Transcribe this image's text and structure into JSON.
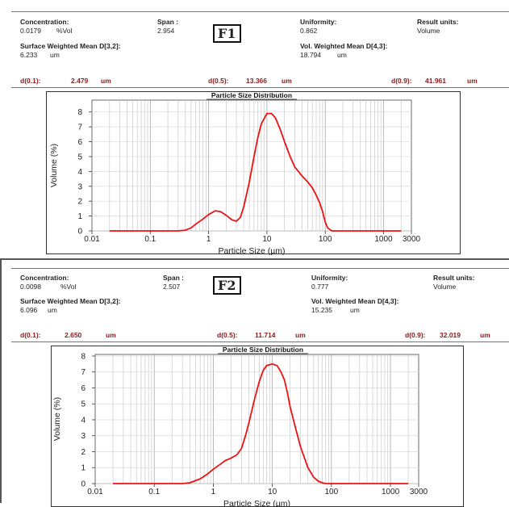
{
  "panels": [
    {
      "tag": "F1",
      "concentration_label": "Concentration:",
      "concentration_value": "0.0179",
      "concentration_unit": "%Vol",
      "span_label": "Span :",
      "span_value": "2.954",
      "uniformity_label": "Uniformity:",
      "uniformity_value": "0.862",
      "result_units_label": "Result units:",
      "result_units_value": "Volume",
      "swm_label": "Surface Weighted Mean D[3,2]:",
      "swm_value": "6.233",
      "swm_unit": "um",
      "vwm_label": "Vol. Weighted Mean D[4,3]:",
      "vwm_value": "18.794",
      "vwm_unit": "um",
      "d01_label": "d(0.1):",
      "d01_value": "2.479",
      "d05_label": "d(0.5):",
      "d05_value": "13.366",
      "d09_label": "d(0.9):",
      "d09_value": "41.961",
      "d_unit": "um"
    },
    {
      "tag": "F2",
      "concentration_label": "Concentration:",
      "concentration_value": "0.0098",
      "concentration_unit": "%Vol",
      "span_label": "Span :",
      "span_value": "2.507",
      "uniformity_label": "Uniformity:",
      "uniformity_value": "0.777",
      "result_units_label": "Result units:",
      "result_units_value": "Volume",
      "swm_label": "Surface Weighted Mean D[3,2]:",
      "swm_value": "6.096",
      "swm_unit": "um",
      "vwm_label": "Vol. Weighted Mean D[4,3]:",
      "vwm_value": "15.235",
      "vwm_unit": "um",
      "d01_label": "d(0.1):",
      "d01_value": "2.650",
      "d05_label": "d(0.5):",
      "d05_value": "11.714",
      "d09_label": "d(0.9):",
      "d09_value": "32.019",
      "d_unit": "um"
    }
  ],
  "chart_data": [
    {
      "type": "line",
      "title": "Particle Size Distribution",
      "xlabel": "Particle Size (µm)",
      "ylabel": "Volume (%)",
      "xscale": "log",
      "xlim": [
        0.01,
        3000
      ],
      "ylim": [
        0,
        8.8
      ],
      "xticks": [
        {
          "v": 0.01,
          "t": "0.01"
        },
        {
          "v": 0.1,
          "t": "0.1"
        },
        {
          "v": 1,
          "t": "1"
        },
        {
          "v": 10,
          "t": "10"
        },
        {
          "v": 100,
          "t": "100"
        },
        {
          "v": 1000,
          "t": "1000"
        },
        {
          "v": 3000,
          "t": "3000"
        }
      ],
      "yticks": [
        0,
        1,
        2,
        3,
        4,
        5,
        6,
        7,
        8
      ],
      "grid": true,
      "line_color": "#ee1111",
      "x": [
        0.02,
        0.3,
        0.4,
        0.5,
        0.6,
        0.8,
        1.0,
        1.3,
        1.6,
        2.0,
        2.5,
        3.0,
        3.5,
        4.0,
        5.0,
        6.0,
        7.0,
        8.0,
        10,
        12,
        14,
        17,
        20,
        25,
        30,
        40,
        50,
        60,
        70,
        80,
        90,
        100,
        110,
        130,
        2000
      ],
      "y": [
        0,
        0,
        0.05,
        0.2,
        0.45,
        0.8,
        1.1,
        1.35,
        1.3,
        1.05,
        0.75,
        0.65,
        0.9,
        1.6,
        3.3,
        5.0,
        6.3,
        7.2,
        7.9,
        7.9,
        7.6,
        6.8,
        6.0,
        5.0,
        4.3,
        3.7,
        3.3,
        2.9,
        2.4,
        1.9,
        1.3,
        0.6,
        0.2,
        0,
        0
      ]
    },
    {
      "type": "line",
      "title": "Particle Size Distribution",
      "xlabel": "Particle Size (µm)",
      "ylabel": "Volume (%)",
      "xscale": "log",
      "xlim": [
        0.01,
        3000
      ],
      "ylim": [
        0,
        8.1
      ],
      "xticks": [
        {
          "v": 0.01,
          "t": "0.01"
        },
        {
          "v": 0.1,
          "t": "0.1"
        },
        {
          "v": 1,
          "t": "1"
        },
        {
          "v": 10,
          "t": "10"
        },
        {
          "v": 100,
          "t": "100"
        },
        {
          "v": 1000,
          "t": "1000"
        },
        {
          "v": 3000,
          "t": "3000"
        }
      ],
      "yticks": [
        0,
        1,
        2,
        3,
        4,
        5,
        6,
        7,
        8
      ],
      "grid": true,
      "line_color": "#ee1111",
      "x": [
        0.02,
        0.3,
        0.4,
        0.6,
        0.8,
        1.0,
        1.3,
        1.6,
        2.0,
        2.5,
        3.0,
        3.5,
        4.0,
        5.0,
        6.0,
        7.0,
        8.0,
        9.0,
        10,
        12,
        14,
        16,
        18,
        20,
        25,
        30,
        35,
        40,
        50,
        60,
        70,
        80,
        90,
        100,
        2000
      ],
      "y": [
        0,
        0,
        0.05,
        0.3,
        0.6,
        0.9,
        1.2,
        1.45,
        1.6,
        1.8,
        2.2,
        3.0,
        3.8,
        5.3,
        6.4,
        7.1,
        7.4,
        7.45,
        7.5,
        7.4,
        7.0,
        6.5,
        5.7,
        4.8,
        3.4,
        2.3,
        1.6,
        1.0,
        0.4,
        0.15,
        0.05,
        0,
        0,
        0,
        0
      ]
    }
  ]
}
